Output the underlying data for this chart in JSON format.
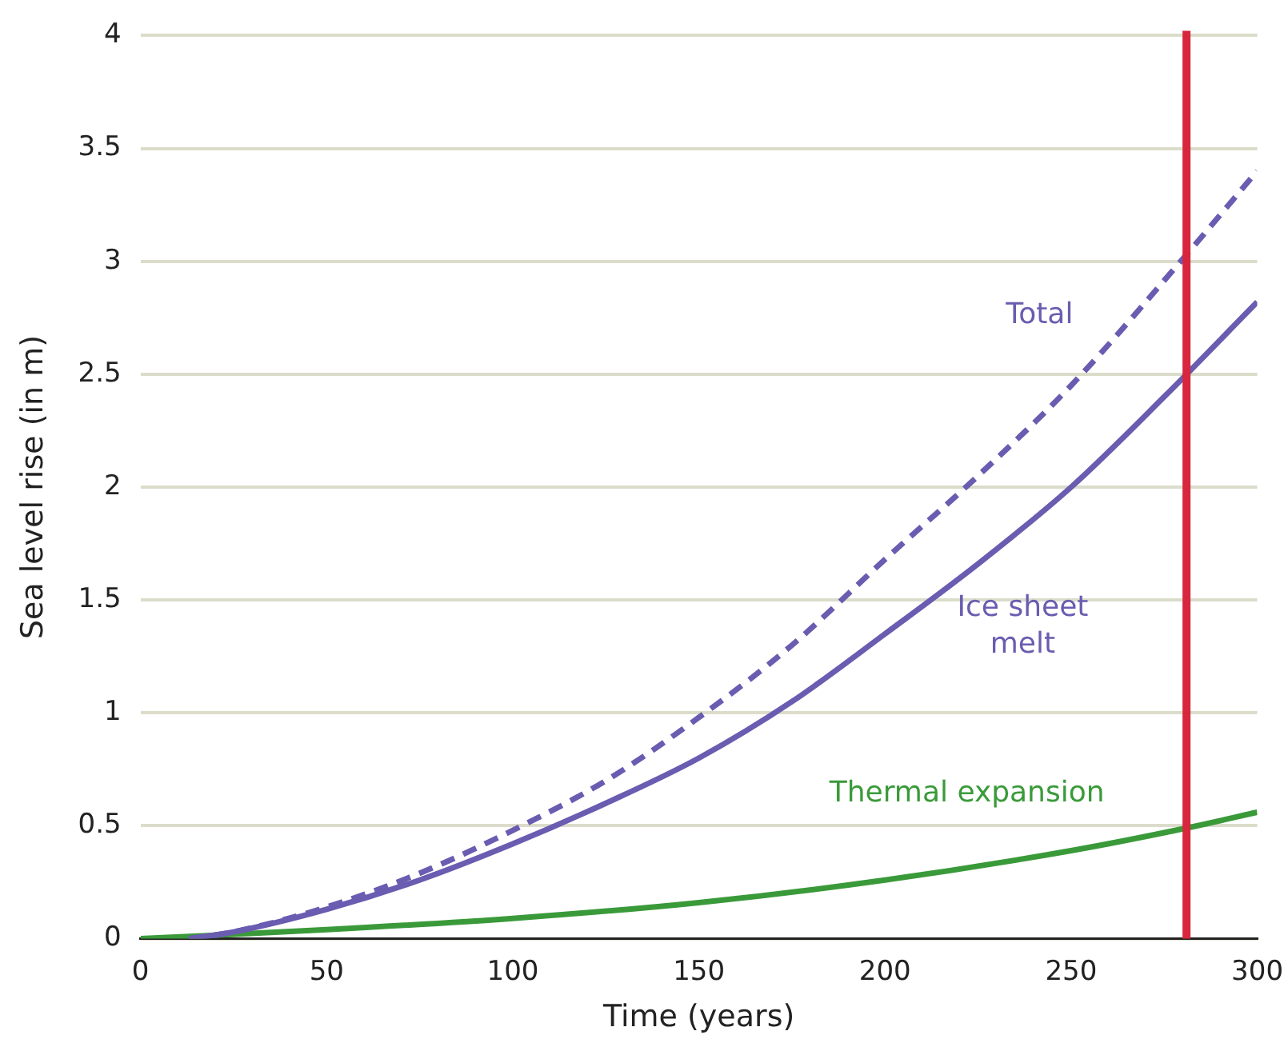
{
  "chart_data": {
    "type": "line",
    "xlabel": "Time (years)",
    "ylabel": "Sea level rise (in m)",
    "xlim": [
      0,
      300
    ],
    "xticks": [
      0,
      50,
      100,
      150,
      200,
      250,
      300
    ],
    "ylim": [
      0,
      4
    ],
    "yticks": [
      0,
      0.5,
      1,
      1.5,
      2,
      2.5,
      3,
      3.5,
      4
    ],
    "grid": "y",
    "legend": false,
    "marker": "none",
    "series": [
      {
        "name": "Total",
        "color": "#6a5cb0",
        "line_style": "dashed",
        "x": [
          13,
          25,
          50,
          75,
          100,
          125,
          150,
          175,
          200,
          225,
          250,
          281,
          300
        ],
        "values": [
          0,
          0.03,
          0.14,
          0.29,
          0.48,
          0.7,
          0.98,
          1.3,
          1.68,
          2.05,
          2.45,
          3.03,
          3.4
        ]
      },
      {
        "name": "Ice sheet melt",
        "color": "#6a5cb0",
        "line_style": "solid",
        "x": [
          13,
          25,
          50,
          75,
          100,
          125,
          150,
          175,
          200,
          225,
          250,
          275,
          300
        ],
        "values": [
          0,
          0.03,
          0.13,
          0.26,
          0.42,
          0.6,
          0.8,
          1.05,
          1.35,
          1.66,
          2.0,
          2.4,
          2.82
        ]
      },
      {
        "name": "Thermal expansion",
        "color": "#3a9a3a",
        "line_style": "solid",
        "x": [
          0,
          50,
          100,
          150,
          200,
          250,
          281,
          300
        ],
        "values": [
          0,
          0.04,
          0.09,
          0.16,
          0.26,
          0.39,
          0.49,
          0.56
        ]
      }
    ],
    "ref_lines": [
      {
        "axis": "x",
        "value": 281,
        "color": "#d7263d"
      }
    ]
  }
}
